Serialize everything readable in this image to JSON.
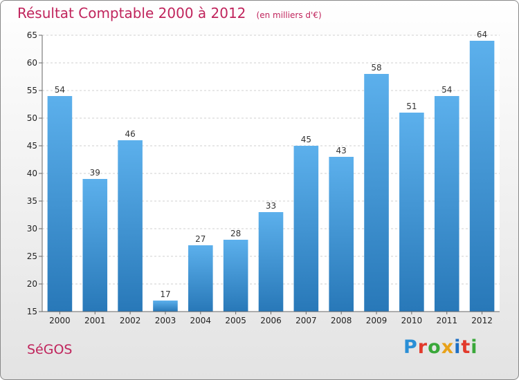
{
  "header": {
    "title": "Résultat Comptable 2000 à 2012",
    "subtitle": "(en milliers d'€)"
  },
  "footer": {
    "town": "SéGOS",
    "logo": "Proxiti",
    "logo_colors": [
      "#2a8fd6",
      "#e23a2c",
      "#3aa83a",
      "#e8a21a",
      "#1e6fc4",
      "#e23a2c",
      "#3aa83a"
    ]
  },
  "colors": {
    "bar_top": "#5cb0ec",
    "bar_bottom": "#2878b8",
    "title": "#c0245c"
  },
  "chart_data": {
    "type": "bar",
    "title": "Résultat Comptable 2000 à 2012",
    "subtitle": "(en milliers d'€)",
    "categories": [
      "2000",
      "2001",
      "2002",
      "2003",
      "2004",
      "2005",
      "2006",
      "2007",
      "2008",
      "2009",
      "2010",
      "2011",
      "2012"
    ],
    "values": [
      54,
      39,
      46,
      17,
      27,
      28,
      33,
      45,
      43,
      58,
      51,
      54,
      64
    ],
    "ylim": [
      15,
      65
    ],
    "yticks": [
      15,
      20,
      25,
      30,
      35,
      40,
      45,
      50,
      55,
      60,
      65
    ],
    "grid": true,
    "data_labels": true,
    "legend": "none"
  }
}
